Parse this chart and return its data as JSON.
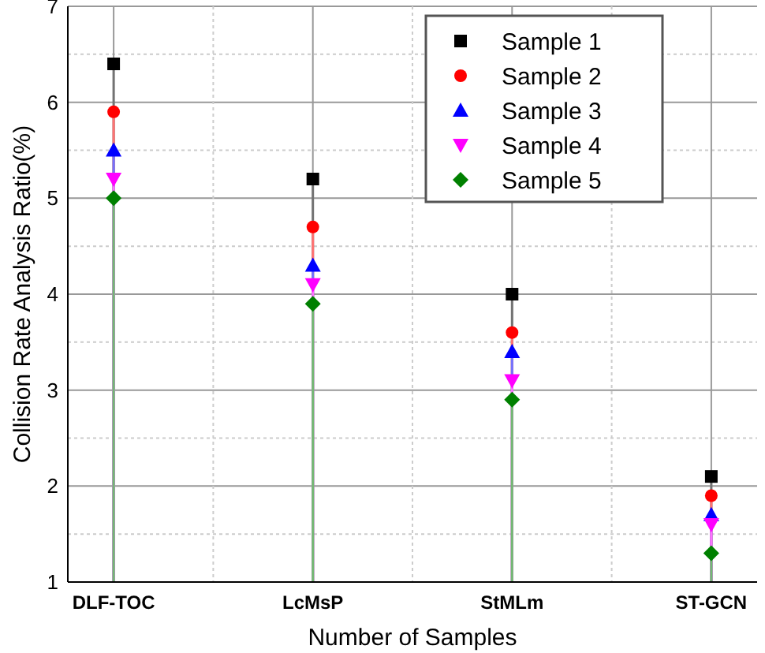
{
  "chart_data": {
    "type": "lollipop",
    "xlabel": "Number of Samples",
    "ylabel": "Collision Rate Analysis Ratio(%)",
    "categories": [
      "DLF-TOC",
      "LcMsP",
      "StMLm",
      "ST-GCN"
    ],
    "series": [
      {
        "name": "Sample 1",
        "color": "#000000",
        "marker": "square",
        "values": [
          6.4,
          5.2,
          4.0,
          2.1
        ]
      },
      {
        "name": "Sample 2",
        "color": "#ff0000",
        "marker": "circle",
        "values": [
          5.9,
          4.7,
          3.6,
          1.9
        ]
      },
      {
        "name": "Sample 3",
        "color": "#0000ff",
        "marker": "triangle",
        "values": [
          5.5,
          4.3,
          3.4,
          1.7
        ]
      },
      {
        "name": "Sample 4",
        "color": "#ff00ff",
        "marker": "triangle-down",
        "values": [
          5.2,
          4.1,
          3.1,
          1.6
        ]
      },
      {
        "name": "Sample 5",
        "color": "#008000",
        "marker": "diamond",
        "values": [
          5.0,
          3.9,
          2.9,
          1.3
        ]
      }
    ],
    "ylim": [
      1,
      7
    ],
    "yticks": [
      1,
      2,
      3,
      4,
      5,
      6,
      7
    ],
    "grid": true,
    "legend": "top right"
  }
}
